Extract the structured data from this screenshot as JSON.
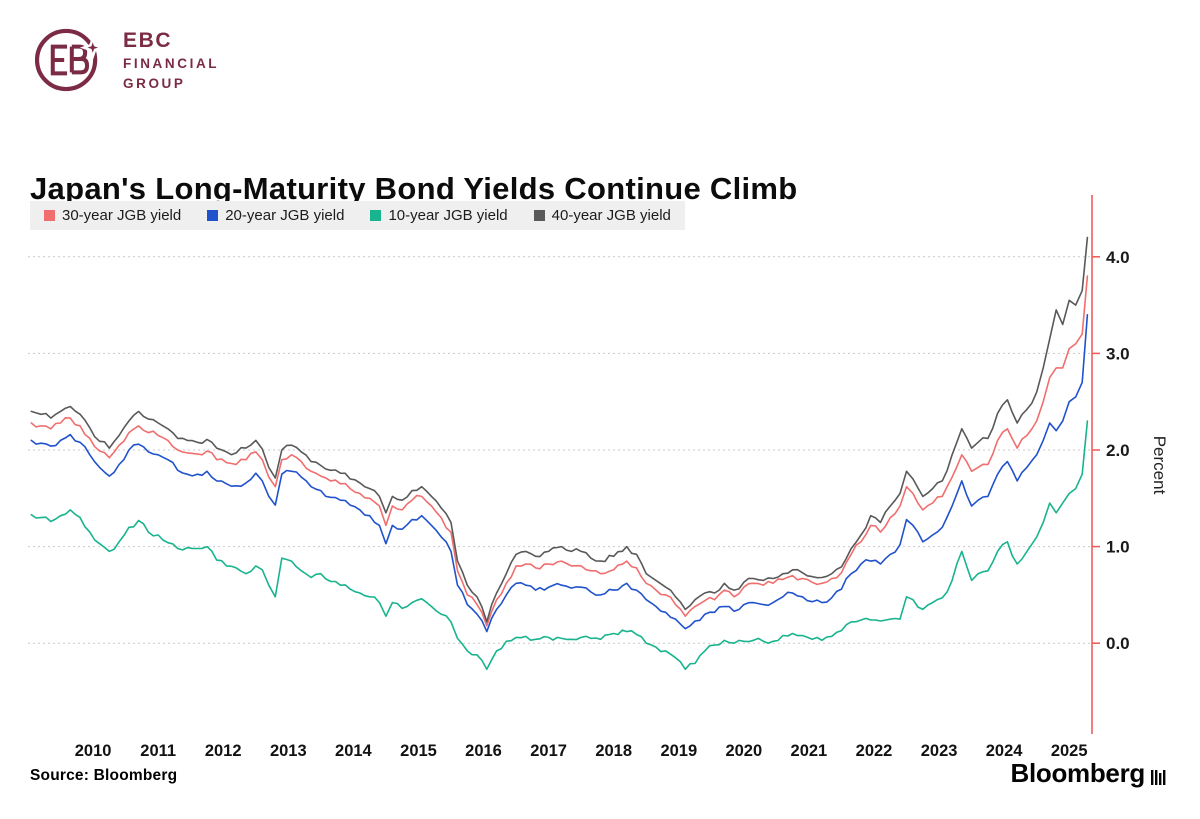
{
  "branding": {
    "lines": [
      "EBC",
      "FINANCIAL",
      "GROUP"
    ],
    "logo_color": "#7b2c44"
  },
  "header": {
    "title": "Japan's Long-Maturity Bond Yields Continue Climb"
  },
  "footer": {
    "source_label": "Source:",
    "source_value": "Bloomberg",
    "brand": "Bloomberg"
  },
  "chart_data": {
    "type": "line",
    "title": "Japan's Long-Maturity Bond Yields Continue Climb",
    "xlabel": "",
    "ylabel": "Percent",
    "x_unit": "decimal_year",
    "xlim": [
      2009.5,
      2025.85
    ],
    "ylim": [
      -0.94,
      4.64
    ],
    "x_ticks": [
      2010,
      2011,
      2012,
      2013,
      2014,
      2015,
      2016,
      2017,
      2018,
      2019,
      2020,
      2021,
      2022,
      2023,
      2024,
      2025
    ],
    "y_ticks": [
      0.0,
      1.0,
      2.0,
      3.0,
      4.0
    ],
    "y_tick_labels": [
      "0.0",
      "1.0",
      "2.0",
      "3.0",
      "4.0"
    ],
    "grid": "horizontal-dotted",
    "grid_color": "#c9c9c9",
    "axis_color": "#ef5e5e",
    "legend_position": "top-left",
    "x": [
      2009.55,
      2009.7,
      2009.85,
      2010.0,
      2010.15,
      2010.3,
      2010.45,
      2010.6,
      2010.75,
      2010.9,
      2011.05,
      2011.2,
      2011.35,
      2011.5,
      2011.65,
      2011.8,
      2011.95,
      2012.1,
      2012.25,
      2012.4,
      2012.55,
      2012.7,
      2012.85,
      2013.0,
      2013.1,
      2013.2,
      2013.3,
      2013.4,
      2013.55,
      2013.7,
      2013.85,
      2014.0,
      2014.15,
      2014.3,
      2014.45,
      2014.6,
      2014.75,
      2014.9,
      2015.0,
      2015.1,
      2015.25,
      2015.4,
      2015.55,
      2015.7,
      2015.85,
      2016.0,
      2016.1,
      2016.25,
      2016.4,
      2016.55,
      2016.7,
      2016.85,
      2017.0,
      2017.15,
      2017.3,
      2017.5,
      2017.7,
      2017.85,
      2018.0,
      2018.15,
      2018.3,
      2018.5,
      2018.7,
      2018.85,
      2019.0,
      2019.15,
      2019.3,
      2019.45,
      2019.6,
      2019.75,
      2019.9,
      2020.05,
      2020.2,
      2020.35,
      2020.5,
      2020.65,
      2020.8,
      2020.95,
      2021.1,
      2021.25,
      2021.4,
      2021.55,
      2021.7,
      2021.85,
      2022.0,
      2022.15,
      2022.3,
      2022.45,
      2022.6,
      2022.75,
      2022.9,
      2023.0,
      2023.1,
      2023.25,
      2023.4,
      2023.55,
      2023.7,
      2023.85,
      2024.0,
      2024.1,
      2024.25,
      2024.4,
      2024.55,
      2024.7,
      2024.85,
      2025.0,
      2025.1,
      2025.2,
      2025.3,
      2025.4,
      2025.5,
      2025.6,
      2025.7,
      2025.78
    ],
    "series": [
      {
        "name": "30-year JGB yield",
        "color": "#f06e6e",
        "values": [
          2.28,
          2.25,
          2.22,
          2.28,
          2.33,
          2.25,
          2.12,
          1.99,
          1.92,
          2.05,
          2.18,
          2.25,
          2.18,
          2.15,
          2.1,
          2.0,
          1.97,
          1.96,
          1.99,
          1.9,
          1.87,
          1.85,
          1.9,
          1.98,
          1.9,
          1.72,
          1.62,
          1.9,
          1.95,
          1.88,
          1.78,
          1.73,
          1.68,
          1.65,
          1.6,
          1.55,
          1.5,
          1.42,
          1.22,
          1.42,
          1.38,
          1.48,
          1.52,
          1.42,
          1.3,
          1.15,
          0.75,
          0.5,
          0.4,
          0.18,
          0.45,
          0.62,
          0.8,
          0.82,
          0.78,
          0.82,
          0.85,
          0.8,
          0.8,
          0.75,
          0.72,
          0.76,
          0.85,
          0.78,
          0.62,
          0.55,
          0.5,
          0.4,
          0.28,
          0.38,
          0.44,
          0.45,
          0.55,
          0.48,
          0.58,
          0.62,
          0.6,
          0.62,
          0.66,
          0.7,
          0.67,
          0.63,
          0.62,
          0.67,
          0.73,
          0.92,
          1.05,
          1.22,
          1.15,
          1.3,
          1.42,
          1.62,
          1.55,
          1.38,
          1.45,
          1.52,
          1.72,
          1.95,
          1.78,
          1.82,
          1.85,
          2.1,
          2.22,
          2.02,
          2.15,
          2.3,
          2.5,
          2.75,
          2.85,
          2.85,
          3.05,
          3.1,
          3.2,
          3.8
        ]
      },
      {
        "name": "20-year JGB yield",
        "color": "#2052cc",
        "values": [
          2.1,
          2.07,
          2.04,
          2.1,
          2.16,
          2.08,
          1.95,
          1.82,
          1.73,
          1.85,
          2.0,
          2.06,
          1.98,
          1.95,
          1.9,
          1.79,
          1.75,
          1.75,
          1.78,
          1.68,
          1.65,
          1.63,
          1.66,
          1.76,
          1.68,
          1.52,
          1.43,
          1.75,
          1.78,
          1.72,
          1.62,
          1.58,
          1.51,
          1.48,
          1.43,
          1.38,
          1.32,
          1.22,
          1.03,
          1.22,
          1.18,
          1.28,
          1.32,
          1.22,
          1.1,
          0.95,
          0.6,
          0.4,
          0.3,
          0.12,
          0.35,
          0.5,
          0.62,
          0.6,
          0.55,
          0.58,
          0.6,
          0.57,
          0.58,
          0.53,
          0.5,
          0.55,
          0.62,
          0.55,
          0.45,
          0.38,
          0.32,
          0.25,
          0.15,
          0.23,
          0.3,
          0.32,
          0.38,
          0.33,
          0.4,
          0.42,
          0.4,
          0.42,
          0.48,
          0.52,
          0.48,
          0.43,
          0.42,
          0.47,
          0.56,
          0.72,
          0.82,
          0.85,
          0.82,
          0.92,
          1.02,
          1.28,
          1.22,
          1.05,
          1.12,
          1.2,
          1.42,
          1.68,
          1.42,
          1.48,
          1.52,
          1.75,
          1.88,
          1.68,
          1.82,
          1.95,
          2.1,
          2.28,
          2.2,
          2.3,
          2.5,
          2.55,
          2.7,
          3.4
        ]
      },
      {
        "name": "10-year JGB yield",
        "color": "#18b48e",
        "values": [
          1.33,
          1.3,
          1.26,
          1.32,
          1.38,
          1.3,
          1.15,
          1.03,
          0.95,
          1.05,
          1.2,
          1.27,
          1.15,
          1.12,
          1.04,
          0.98,
          0.99,
          0.98,
          1.0,
          0.86,
          0.8,
          0.78,
          0.72,
          0.8,
          0.76,
          0.6,
          0.48,
          0.88,
          0.85,
          0.75,
          0.68,
          0.72,
          0.64,
          0.6,
          0.56,
          0.52,
          0.48,
          0.42,
          0.28,
          0.42,
          0.36,
          0.42,
          0.46,
          0.38,
          0.3,
          0.22,
          0.05,
          -0.08,
          -0.12,
          -0.27,
          -0.08,
          0.02,
          0.06,
          0.07,
          0.04,
          0.06,
          0.05,
          0.04,
          0.06,
          0.05,
          0.04,
          0.1,
          0.12,
          0.09,
          0.0,
          -0.04,
          -0.08,
          -0.15,
          -0.27,
          -0.21,
          -0.08,
          -0.02,
          0.03,
          0.0,
          0.02,
          0.03,
          0.02,
          0.02,
          0.08,
          0.1,
          0.08,
          0.04,
          0.03,
          0.07,
          0.13,
          0.22,
          0.24,
          0.24,
          0.23,
          0.25,
          0.25,
          0.48,
          0.45,
          0.35,
          0.42,
          0.47,
          0.65,
          0.95,
          0.65,
          0.72,
          0.75,
          0.95,
          1.05,
          0.82,
          0.95,
          1.1,
          1.25,
          1.45,
          1.35,
          1.45,
          1.55,
          1.6,
          1.75,
          2.3
        ]
      },
      {
        "name": "40-year JGB yield",
        "color": "#595959",
        "values": [
          2.4,
          2.37,
          2.33,
          2.4,
          2.45,
          2.37,
          2.23,
          2.09,
          2.02,
          2.15,
          2.3,
          2.4,
          2.32,
          2.28,
          2.22,
          2.12,
          2.1,
          2.08,
          2.11,
          2.02,
          1.98,
          1.97,
          2.02,
          2.1,
          2.01,
          1.82,
          1.71,
          2.0,
          2.05,
          1.98,
          1.88,
          1.84,
          1.79,
          1.76,
          1.7,
          1.66,
          1.6,
          1.52,
          1.35,
          1.52,
          1.48,
          1.58,
          1.62,
          1.52,
          1.4,
          1.25,
          0.85,
          0.6,
          0.48,
          0.22,
          0.52,
          0.72,
          0.92,
          0.95,
          0.9,
          0.95,
          1.0,
          0.95,
          0.95,
          0.88,
          0.85,
          0.9,
          1.0,
          0.92,
          0.72,
          0.65,
          0.58,
          0.48,
          0.35,
          0.45,
          0.52,
          0.52,
          0.62,
          0.55,
          0.63,
          0.67,
          0.65,
          0.67,
          0.72,
          0.76,
          0.73,
          0.69,
          0.68,
          0.72,
          0.79,
          0.98,
          1.12,
          1.32,
          1.25,
          1.42,
          1.55,
          1.78,
          1.7,
          1.52,
          1.6,
          1.68,
          1.95,
          2.22,
          2.02,
          2.08,
          2.12,
          2.38,
          2.52,
          2.28,
          2.42,
          2.6,
          2.85,
          3.15,
          3.45,
          3.3,
          3.55,
          3.5,
          3.65,
          4.2
        ]
      }
    ]
  }
}
